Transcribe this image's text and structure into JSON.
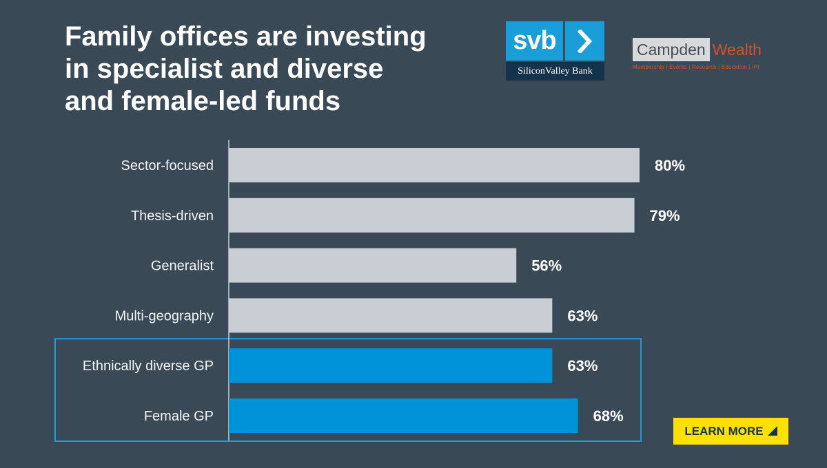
{
  "header": {
    "title_lines": [
      "Family offices are investing",
      "in specialist and diverse",
      "and female-led funds"
    ]
  },
  "logos": {
    "svb": {
      "name": "svb",
      "subtitle": "SiliconValley Bank",
      "color": "#1a9ed9"
    },
    "campden": {
      "name_box": "Campden",
      "name_accent": "Wealth",
      "tagline": "Membership | Events | Research | Education | IPI",
      "accent_color": "#d7502b"
    }
  },
  "cta": {
    "label": "LEARN MORE",
    "color": "#ffe100"
  },
  "chart_data": {
    "type": "bar",
    "orientation": "horizontal",
    "title": "",
    "categories": [
      "Sector-focused",
      "Thesis-driven",
      "Generalist",
      "Multi-geography",
      "Ethnically diverse GP",
      "Female GP"
    ],
    "values": [
      80,
      79,
      56,
      63,
      63,
      68
    ],
    "value_labels": [
      "80%",
      "79%",
      "56%",
      "63%",
      "63%",
      "68%"
    ],
    "highlighted": [
      false,
      false,
      false,
      false,
      true,
      true
    ],
    "xlim": [
      0,
      100
    ],
    "grid": false,
    "colors": {
      "default_bar": "#c8ced4",
      "highlight_bar": "#0093da",
      "highlight_box": "#1b9ee0",
      "axis": "#c8ced4"
    }
  }
}
